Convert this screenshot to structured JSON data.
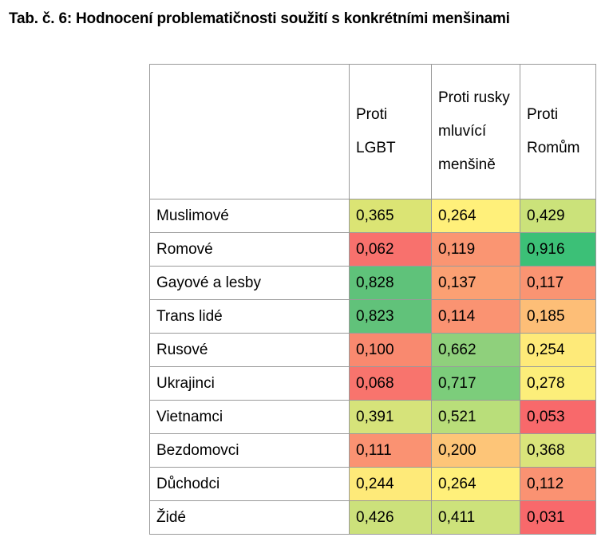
{
  "title": "Tab. č. 6: Hodnocení problematičnosti soužití s konkrétními menšinami",
  "table": {
    "columns": [
      {
        "label": "Proti LGBT"
      },
      {
        "label": "Proti rusky mluvící menšině"
      },
      {
        "label": "Proti Romům"
      }
    ],
    "rows": [
      {
        "label": "Muslimové",
        "cells": [
          {
            "value": "0,365",
            "color": "#dbe474"
          },
          {
            "value": "0,264",
            "color": "#fff07a"
          },
          {
            "value": "0,429",
            "color": "#cbe27a"
          }
        ]
      },
      {
        "label": "Romové",
        "cells": [
          {
            "value": "0,062",
            "color": "#f8716d"
          },
          {
            "value": "0,119",
            "color": "#fa9572"
          },
          {
            "value": "0,916",
            "color": "#3cc077"
          }
        ]
      },
      {
        "label": "Gayové a lesby",
        "cells": [
          {
            "value": "0,828",
            "color": "#5fc27a"
          },
          {
            "value": "0,137",
            "color": "#fba073"
          },
          {
            "value": "0,117",
            "color": "#fa9472"
          }
        ]
      },
      {
        "label": "Trans lidé",
        "cells": [
          {
            "value": "0,823",
            "color": "#61c27a"
          },
          {
            "value": "0,114",
            "color": "#fa9372"
          },
          {
            "value": "0,185",
            "color": "#fdbe77"
          }
        ]
      },
      {
        "label": "Rusové",
        "cells": [
          {
            "value": "0,100",
            "color": "#f9896f"
          },
          {
            "value": "0,662",
            "color": "#8fd07c"
          },
          {
            "value": "0,254",
            "color": "#feea79"
          }
        ]
      },
      {
        "label": "Ukrajinci",
        "cells": [
          {
            "value": "0,068",
            "color": "#f8746d"
          },
          {
            "value": "0,717",
            "color": "#7ccd7b"
          },
          {
            "value": "0,278",
            "color": "#fcee7a"
          }
        ]
      },
      {
        "label": "Vietnamci",
        "cells": [
          {
            "value": "0,391",
            "color": "#d6e37a"
          },
          {
            "value": "0,521",
            "color": "#b9de7a"
          },
          {
            "value": "0,053",
            "color": "#f8696b"
          }
        ]
      },
      {
        "label": "Bezdomovci",
        "cells": [
          {
            "value": "0,111",
            "color": "#fa9272"
          },
          {
            "value": "0,200",
            "color": "#fdc578"
          },
          {
            "value": "0,368",
            "color": "#dae47b"
          }
        ]
      },
      {
        "label": "Důchodci",
        "cells": [
          {
            "value": "0,244",
            "color": "#feea79"
          },
          {
            "value": "0,264",
            "color": "#fff07a"
          },
          {
            "value": "0,112",
            "color": "#fa9272"
          }
        ]
      },
      {
        "label": "Židé",
        "cells": [
          {
            "value": "0,426",
            "color": "#cce17b"
          },
          {
            "value": "0,411",
            "color": "#cde27b"
          },
          {
            "value": "0,031",
            "color": "#f8696b"
          }
        ]
      }
    ]
  }
}
